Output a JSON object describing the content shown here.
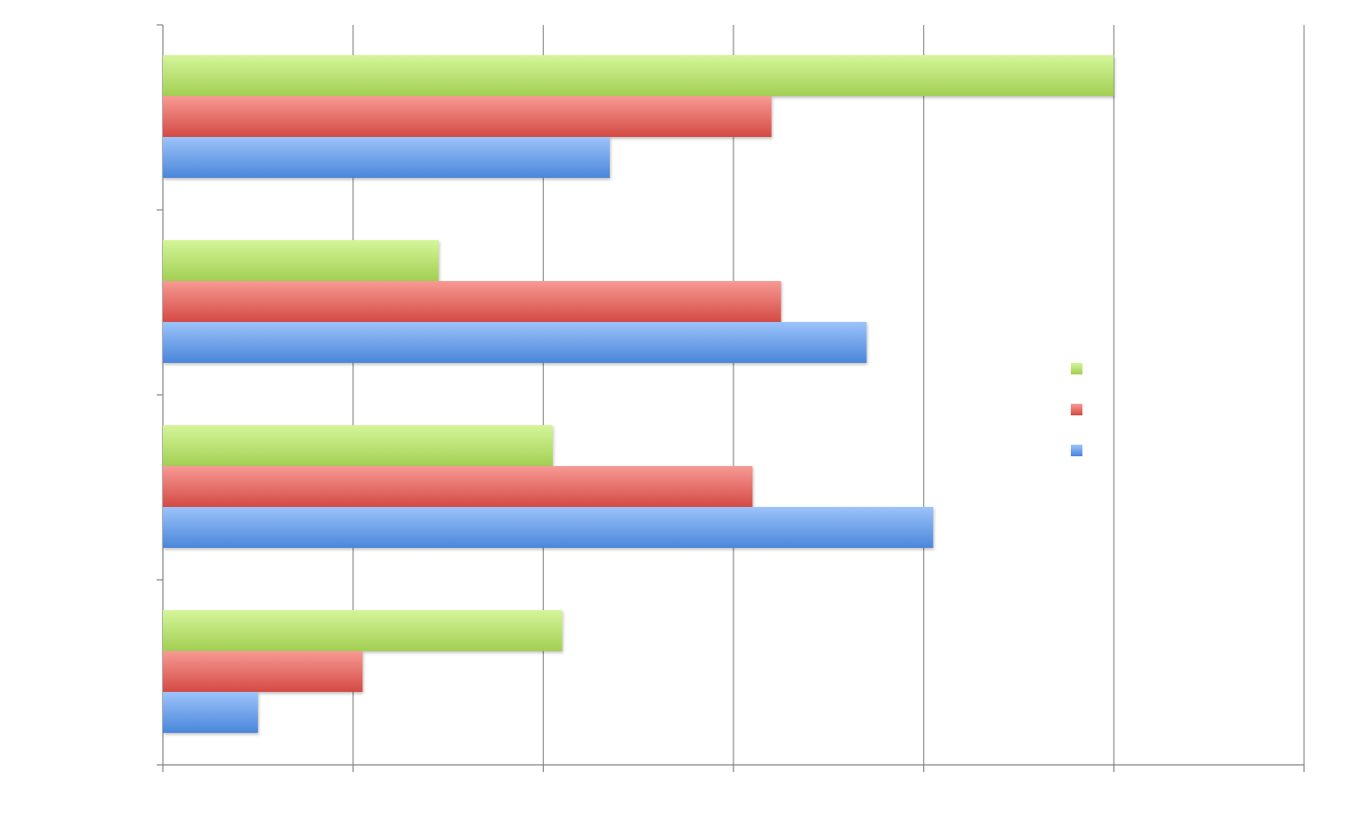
{
  "chart_data": {
    "type": "bar",
    "orientation": "horizontal",
    "title": "",
    "xlabel": "",
    "ylabel": "",
    "xlim": [
      0,
      6
    ],
    "xticks": [
      0,
      1,
      2,
      3,
      4,
      5,
      6
    ],
    "categories": [
      "",
      "",
      "",
      ""
    ],
    "series": [
      {
        "color": "#a4d45c",
        "values": [
          5.0,
          1.45,
          2.05,
          2.1
        ]
      },
      {
        "color": "#d9534f",
        "values": [
          3.2,
          3.25,
          3.1,
          1.05
        ]
      },
      {
        "color": "#5b93e0",
        "values": [
          2.35,
          3.7,
          4.05,
          0.5
        ]
      }
    ],
    "grid": true,
    "legend_position": "right"
  }
}
